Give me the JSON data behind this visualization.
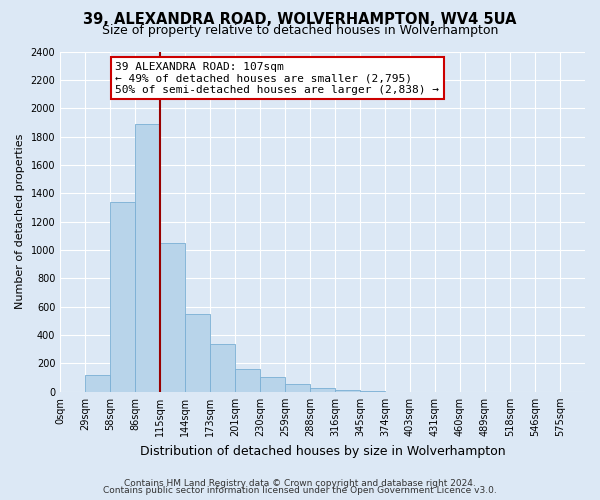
{
  "title": "39, ALEXANDRA ROAD, WOLVERHAMPTON, WV4 5UA",
  "subtitle": "Size of property relative to detached houses in Wolverhampton",
  "xlabel": "Distribution of detached houses by size in Wolverhampton",
  "ylabel": "Number of detached properties",
  "bin_labels": [
    "0sqm",
    "29sqm",
    "58sqm",
    "86sqm",
    "115sqm",
    "144sqm",
    "173sqm",
    "201sqm",
    "230sqm",
    "259sqm",
    "288sqm",
    "316sqm",
    "345sqm",
    "374sqm",
    "403sqm",
    "431sqm",
    "460sqm",
    "489sqm",
    "518sqm",
    "546sqm",
    "575sqm"
  ],
  "bar_heights": [
    0,
    120,
    1340,
    1890,
    1050,
    550,
    335,
    160,
    105,
    55,
    25,
    10,
    5,
    2,
    2,
    1,
    0,
    0,
    0,
    0,
    0
  ],
  "bar_color": "#b8d4ea",
  "bar_edge_color": "#7aafd4",
  "vline_x_idx": 4,
  "vline_color": "#990000",
  "annotation_line1": "39 ALEXANDRA ROAD: 107sqm",
  "annotation_line2": "← 49% of detached houses are smaller (2,795)",
  "annotation_line3": "50% of semi-detached houses are larger (2,838) →",
  "annotation_box_facecolor": "white",
  "annotation_box_edgecolor": "#cc0000",
  "ylim": [
    0,
    2400
  ],
  "yticks": [
    0,
    200,
    400,
    600,
    800,
    1000,
    1200,
    1400,
    1600,
    1800,
    2000,
    2200,
    2400
  ],
  "footer1": "Contains HM Land Registry data © Crown copyright and database right 2024.",
  "footer2": "Contains public sector information licensed under the Open Government Licence v3.0.",
  "bg_color": "#dce8f5",
  "plot_bg_color": "#dce8f5",
  "grid_color": "white",
  "title_fontsize": 10.5,
  "subtitle_fontsize": 9,
  "xlabel_fontsize": 9,
  "ylabel_fontsize": 8,
  "tick_fontsize": 7,
  "footer_fontsize": 6.5,
  "annotation_fontsize": 8
}
